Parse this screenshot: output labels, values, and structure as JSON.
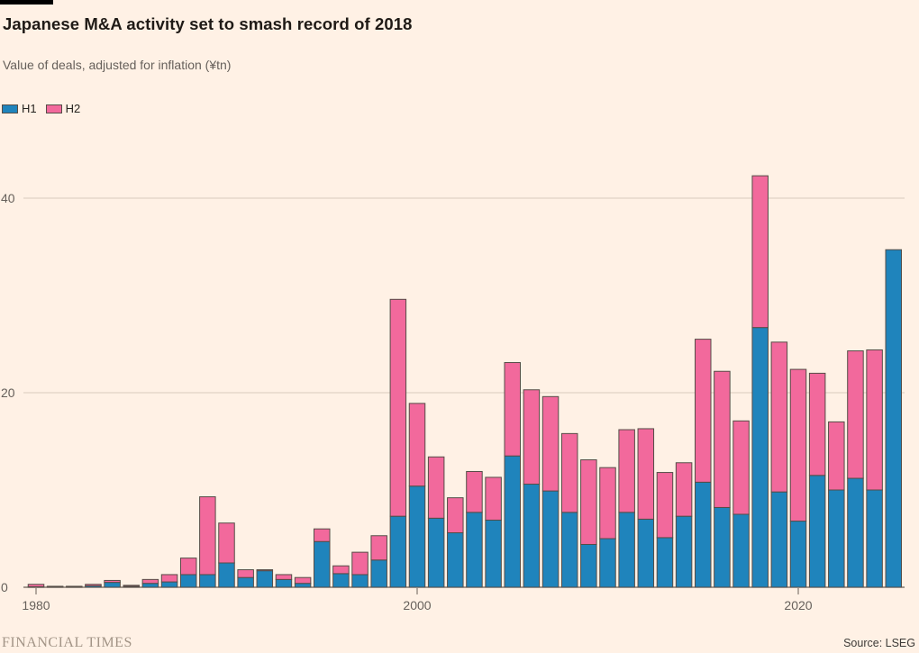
{
  "header": {
    "title": "Japanese M&A activity set to smash record of 2018",
    "subtitle": "Value of deals, adjusted for inflation (¥tn)"
  },
  "footer": {
    "brand": "FINANCIAL TIMES",
    "source": "Source: LSEG"
  },
  "colors": {
    "background": "#FFF1E5",
    "h1_blue": "#1f84bc",
    "h2_pink": "#f2699c",
    "bar_border": "#554d47",
    "gridline": "#d9cbbd",
    "axis_line": "#695f57",
    "axis_text": "#66605b"
  },
  "chart_data": {
    "type": "bar",
    "stacked": true,
    "title": "Japanese M&A activity set to smash record of 2018",
    "subtitle": "Value of deals, adjusted for inflation (¥tn)",
    "xlabel": "",
    "ylabel": "",
    "ylim": [
      0,
      45
    ],
    "yticks": [
      0,
      20,
      40
    ],
    "xticks": [
      1980,
      2000,
      2020
    ],
    "grid": true,
    "legend_position": "top-left",
    "categories": [
      1980,
      1981,
      1982,
      1983,
      1984,
      1985,
      1986,
      1987,
      1988,
      1989,
      1990,
      1991,
      1992,
      1993,
      1994,
      1995,
      1996,
      1997,
      1998,
      1999,
      2000,
      2001,
      2002,
      2003,
      2004,
      2005,
      2006,
      2007,
      2008,
      2009,
      2010,
      2011,
      2012,
      2013,
      2014,
      2015,
      2016,
      2017,
      2018,
      2019,
      2020,
      2021,
      2022,
      2023,
      2024,
      2025
    ],
    "series": [
      {
        "name": "H1",
        "color": "#1f84bc",
        "values": [
          0.05,
          0.05,
          0.05,
          0.15,
          0.5,
          0.1,
          0.4,
          0.55,
          1.3,
          1.3,
          2.5,
          1.0,
          1.7,
          0.8,
          0.4,
          4.7,
          1.4,
          1.3,
          2.8,
          7.3,
          10.4,
          7.1,
          5.6,
          7.7,
          6.9,
          13.5,
          10.6,
          9.9,
          7.7,
          4.4,
          5.0,
          7.7,
          7.0,
          5.1,
          7.3,
          10.8,
          8.2,
          7.5,
          26.7,
          9.8,
          6.8,
          11.5,
          10.0,
          11.2,
          10.0,
          34.7
        ]
      },
      {
        "name": "H2",
        "color": "#f2699c",
        "values": [
          0.25,
          0.05,
          0.05,
          0.15,
          0.2,
          0.1,
          0.4,
          0.75,
          1.7,
          8.0,
          4.1,
          0.8,
          0.1,
          0.5,
          0.6,
          1.3,
          0.8,
          2.3,
          2.5,
          22.3,
          8.5,
          6.3,
          3.6,
          4.2,
          4.4,
          9.6,
          9.7,
          9.7,
          8.1,
          8.7,
          7.3,
          8.5,
          9.3,
          6.7,
          5.5,
          14.7,
          14.0,
          9.6,
          15.6,
          15.4,
          15.6,
          10.5,
          7.0,
          13.1,
          14.4,
          0
        ]
      }
    ]
  }
}
